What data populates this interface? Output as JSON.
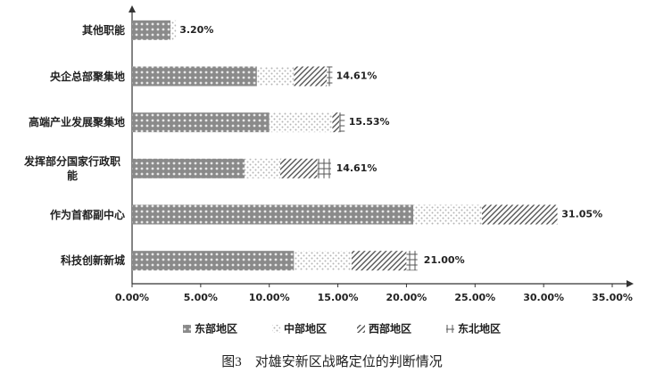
{
  "chart_data": {
    "type": "stacked-bar-horizontal",
    "caption": "图3　对雄安新区战略定位的判断情况",
    "categories": [
      "其他职能",
      "央企总部聚集地",
      "高端产业发展聚集地",
      "发挥部分国家行政职能",
      "作为首都副中心",
      "科技创新新城"
    ],
    "series": [
      {
        "name": "东部地区",
        "color": "#8a8a8a",
        "pattern": "dots",
        "values": [
          2.8,
          9.1,
          10.0,
          8.2,
          20.5,
          11.8
        ]
      },
      {
        "name": "中部地区",
        "color": "#b5b5b5",
        "pattern": "speckle",
        "values": [
          0.4,
          2.7,
          4.6,
          2.6,
          5.0,
          4.2
        ]
      },
      {
        "name": "西部地区",
        "color": "#555555",
        "pattern": "diagonal",
        "values": [
          0,
          2.4,
          0.5,
          2.7,
          5.5,
          4.0
        ]
      },
      {
        "name": "东北地区",
        "color": "#555555",
        "pattern": "grid",
        "values": [
          0,
          0.4,
          0.4,
          1.0,
          0,
          0.8
        ]
      }
    ],
    "totals": [
      3.2,
      14.61,
      15.53,
      14.61,
      31.05,
      21.0
    ],
    "total_labels": [
      "3.20%",
      "14.61%",
      "15.53%",
      "14.61%",
      "31.05%",
      "21.00%"
    ],
    "xlim": [
      0,
      35
    ],
    "xticks": [
      {
        "value": 0,
        "label": "0.00%"
      },
      {
        "value": 5,
        "label": "5.00%"
      },
      {
        "value": 10,
        "label": "10.00%"
      },
      {
        "value": 15,
        "label": "15.00%"
      },
      {
        "value": 20,
        "label": "20.00%"
      },
      {
        "value": 25,
        "label": "25.00%"
      },
      {
        "value": 30,
        "label": "30.00%"
      },
      {
        "value": 35,
        "label": "35.00%"
      }
    ],
    "legend": "bottom"
  }
}
